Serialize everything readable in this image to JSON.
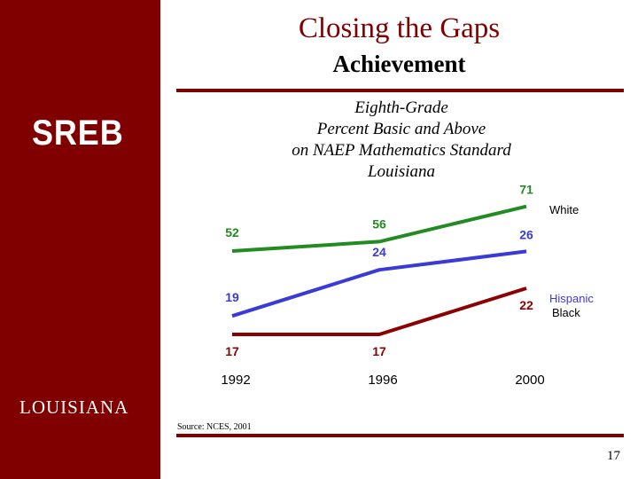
{
  "slide": {
    "title": "Closing the Gaps",
    "subtitle": "Achievement",
    "logo": "SREB",
    "state": "LOUISIANA",
    "source": "Source: NCES, 2001",
    "page_number": "17"
  },
  "colors": {
    "sidebar": "#800000",
    "title": "#800000",
    "white_series": "#228b22",
    "hispanic_series": "#3a3ad6",
    "black_series": "#8b0000"
  },
  "chart_data": {
    "type": "line",
    "title_lines": [
      "Eighth-Grade",
      "Percent Basic and Above",
      "on NAEP Mathematics Standard",
      "Louisiana"
    ],
    "categories": [
      "1992",
      "1996",
      "2000"
    ],
    "series": [
      {
        "name": "White",
        "values": [
          52,
          56,
          71
        ],
        "color": "#228b22"
      },
      {
        "name": "Hispanic",
        "values": [
          19,
          24,
          26
        ],
        "color": "#3a3ad6"
      },
      {
        "name": "Black",
        "values": [
          17,
          17,
          22
        ],
        "color": "#8b0000"
      }
    ],
    "grid": false,
    "legend": "right, labels at line ends"
  }
}
